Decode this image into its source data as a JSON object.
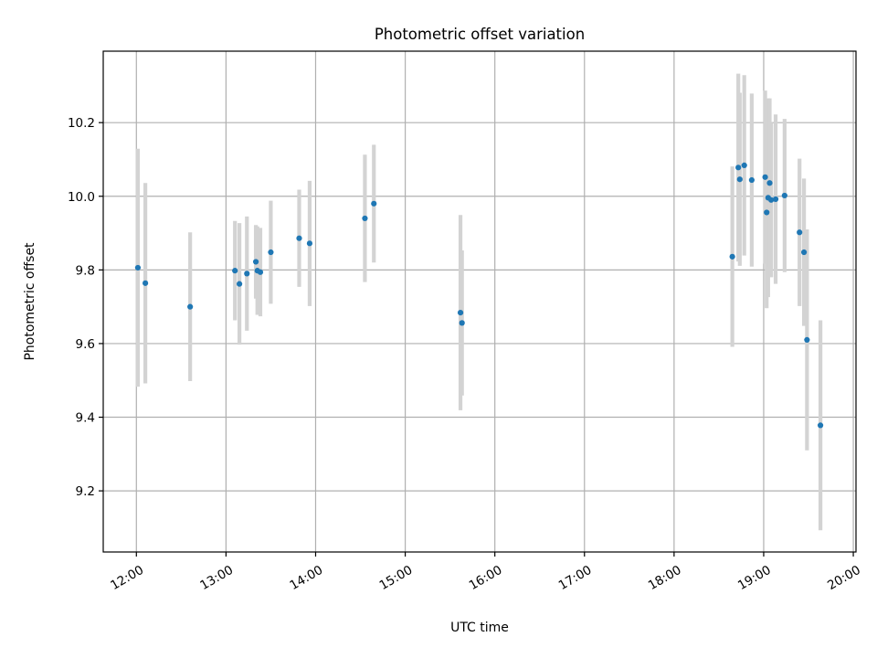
{
  "chart_data": {
    "type": "scatter",
    "title": "Photometric offset variation",
    "xlabel": "UTC time",
    "ylabel": "Photometric offset",
    "x_tick_labels": [
      "12:00",
      "13:00",
      "14:00",
      "15:00",
      "16:00",
      "17:00",
      "18:00",
      "19:00",
      "20:00"
    ],
    "x_tick_hours": [
      12,
      13,
      14,
      15,
      16,
      17,
      18,
      19,
      20
    ],
    "y_tick_labels": [
      "9.2",
      "9.4",
      "9.6",
      "9.8",
      "10.0",
      "10.2"
    ],
    "y_tick_values": [
      9.2,
      9.4,
      9.6,
      9.8,
      10.0,
      10.2
    ],
    "xlim_hours": [
      11.63,
      20.03
    ],
    "ylim": [
      9.034,
      10.394
    ],
    "grid": true,
    "point_color": "#1f77b4",
    "errorbar_color": "#d3d3d3",
    "points": [
      {
        "t": "12:01",
        "y": 9.806,
        "err": 0.323
      },
      {
        "t": "12:06",
        "y": 9.764,
        "err": 0.272
      },
      {
        "t": "12:36",
        "y": 9.7,
        "err": 0.202
      },
      {
        "t": "13:06",
        "y": 9.798,
        "err": 0.135
      },
      {
        "t": "13:09",
        "y": 9.762,
        "err": 0.165
      },
      {
        "t": "13:14",
        "y": 9.79,
        "err": 0.155
      },
      {
        "t": "13:20",
        "y": 9.822,
        "err": 0.1
      },
      {
        "t": "13:21",
        "y": 9.798,
        "err": 0.12
      },
      {
        "t": "13:23",
        "y": 9.794,
        "err": 0.12
      },
      {
        "t": "13:30",
        "y": 9.848,
        "err": 0.14
      },
      {
        "t": "13:49",
        "y": 9.886,
        "err": 0.132
      },
      {
        "t": "13:56",
        "y": 9.872,
        "err": 0.17
      },
      {
        "t": "14:33",
        "y": 9.94,
        "err": 0.173
      },
      {
        "t": "14:39",
        "y": 9.98,
        "err": 0.16
      },
      {
        "t": "15:37",
        "y": 9.684,
        "err": 0.265
      },
      {
        "t": "15:38",
        "y": 9.656,
        "err": 0.197
      },
      {
        "t": "18:39",
        "y": 9.836,
        "err": 0.245
      },
      {
        "t": "18:43",
        "y": 10.078,
        "err": 0.255
      },
      {
        "t": "18:44",
        "y": 10.046,
        "err": 0.235
      },
      {
        "t": "18:47",
        "y": 10.084,
        "err": 0.245
      },
      {
        "t": "18:52",
        "y": 10.044,
        "err": 0.235
      },
      {
        "t": "19:01",
        "y": 10.052,
        "err": 0.235
      },
      {
        "t": "19:02",
        "y": 9.956,
        "err": 0.26
      },
      {
        "t": "19:03",
        "y": 9.996,
        "err": 0.27
      },
      {
        "t": "19:04",
        "y": 10.036,
        "err": 0.23
      },
      {
        "t": "19:05",
        "y": 9.99,
        "err": 0.21
      },
      {
        "t": "19:08",
        "y": 9.992,
        "err": 0.23
      },
      {
        "t": "19:14",
        "y": 10.002,
        "err": 0.208
      },
      {
        "t": "19:24",
        "y": 9.902,
        "err": 0.2
      },
      {
        "t": "19:27",
        "y": 9.848,
        "err": 0.2
      },
      {
        "t": "19:29",
        "y": 9.61,
        "err": 0.3
      },
      {
        "t": "19:38",
        "y": 9.378,
        "err": 0.285
      }
    ]
  }
}
